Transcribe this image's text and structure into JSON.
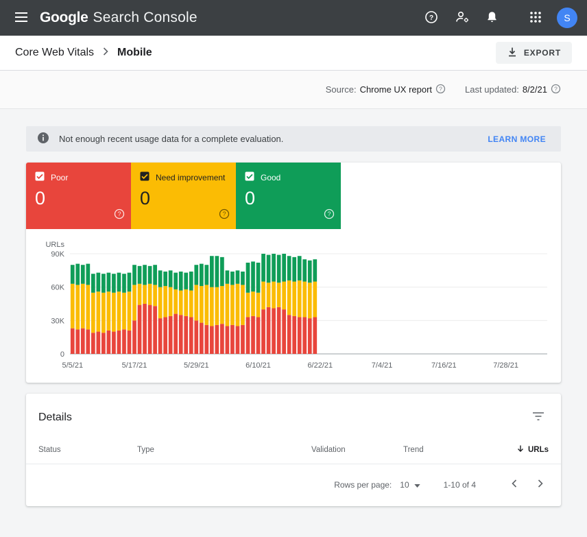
{
  "colors": {
    "header_bg": "#3c4043",
    "accent_blue": "#4285f4",
    "poor": "#e8453c",
    "need_improvement": "#fbbc04",
    "good": "#0f9d58",
    "banner_bg": "#e8eaed"
  },
  "icons": {
    "menu": "hamburger",
    "help": "question-circle",
    "user_settings": "person-gear",
    "notifications": "bell",
    "apps": "grid-3x3",
    "export": "download-arrow",
    "breadcrumb_separator": "chevron-right",
    "meta_help": "question-circle-small",
    "banner_info": "info-circle",
    "tab_checkbox": "checked-checkbox",
    "tab_help": "question-circle-outline",
    "filter": "filter-list",
    "sort": "arrow-down",
    "rows_caret": "triangle-down",
    "prev": "chevron-left",
    "next": "chevron-right"
  },
  "header": {
    "logo_primary": "Google",
    "logo_secondary": "Search Console",
    "avatar_letter": "S"
  },
  "breadcrumb": {
    "root": "Core Web Vitals",
    "current": "Mobile",
    "export_label": "EXPORT"
  },
  "meta": {
    "source_label": "Source:",
    "source_value": "Chrome UX report",
    "updated_label": "Last updated:",
    "updated_value": "8/2/21"
  },
  "banner": {
    "message": "Not enough recent usage data for a complete evaluation.",
    "action_label": "LEARN MORE"
  },
  "status_tabs": [
    {
      "id": "poor",
      "label": "Poor",
      "count": "0",
      "color": "#e8453c",
      "text_color": "#ffffff"
    },
    {
      "id": "need-improvement",
      "label": "Need improvement",
      "count": "0",
      "color": "#fbbc04",
      "text_color": "#212121"
    },
    {
      "id": "good",
      "label": "Good",
      "count": "0",
      "color": "#0f9d58",
      "text_color": "#ffffff"
    }
  ],
  "chart_data": {
    "type": "bar",
    "stacked": true,
    "title": "",
    "ylabel": "URLs",
    "values_unit": "K (thousands of URLs)",
    "ylim": [
      0,
      90
    ],
    "yticks": [
      {
        "value": 90,
        "label": "90K"
      },
      {
        "value": 60,
        "label": "60K"
      },
      {
        "value": 30,
        "label": "30K"
      },
      {
        "value": 0,
        "label": "0"
      }
    ],
    "x_axis": {
      "tick_labels": [
        "5/5/21",
        "5/17/21",
        "5/29/21",
        "6/10/21",
        "6/22/21",
        "7/4/21",
        "7/16/21",
        "7/28/21"
      ],
      "tick_day_indices": [
        0,
        12,
        24,
        36,
        48,
        60,
        72,
        84
      ],
      "total_days": 92,
      "data_start_label": "5/5/21",
      "data_end_note": "bars end just before 6/22/21; no data afterward"
    },
    "series": [
      {
        "name": "Poor",
        "color": "#e8453c",
        "values": [
          23,
          22,
          23,
          22,
          19,
          20,
          19,
          21,
          20,
          21,
          22,
          21,
          30,
          44,
          45,
          44,
          43,
          32,
          33,
          34,
          36,
          35,
          34,
          33,
          30,
          28,
          26,
          25,
          26,
          27,
          25,
          26,
          25,
          26,
          33,
          34,
          33,
          40,
          42,
          41,
          42,
          40,
          35,
          34,
          33,
          33,
          32,
          33
        ]
      },
      {
        "name": "Need improvement",
        "color": "#fbbc04",
        "values": [
          40,
          40,
          40,
          40,
          36,
          36,
          36,
          35,
          35,
          35,
          33,
          35,
          32,
          19,
          17,
          19,
          19,
          28,
          28,
          26,
          22,
          22,
          24,
          24,
          32,
          33,
          36,
          35,
          34,
          34,
          38,
          36,
          38,
          36,
          22,
          22,
          22,
          25,
          22,
          24,
          22,
          25,
          31,
          31,
          33,
          32,
          32,
          32
        ]
      },
      {
        "name": "Good",
        "color": "#0f9d58",
        "values": [
          17,
          19,
          17,
          19,
          17,
          17,
          17,
          17,
          17,
          17,
          17,
          17,
          18,
          16,
          18,
          16,
          18,
          15,
          13,
          15,
          15,
          17,
          15,
          17,
          18,
          20,
          18,
          28,
          28,
          26,
          12,
          12,
          12,
          12,
          27,
          27,
          27,
          25,
          25,
          25,
          25,
          25,
          22,
          22,
          22,
          20,
          20,
          20
        ]
      }
    ],
    "legend_position": "none",
    "grid": true
  },
  "details": {
    "title": "Details",
    "columns": [
      "Status",
      "Type",
      "Validation",
      "Trend",
      "URLs"
    ],
    "sorted_column": "URLs",
    "sort_direction": "desc",
    "rows": [],
    "rows_per_page_label": "Rows per page:",
    "rows_per_page_value": "10",
    "range_label": "1-10 of 4"
  }
}
